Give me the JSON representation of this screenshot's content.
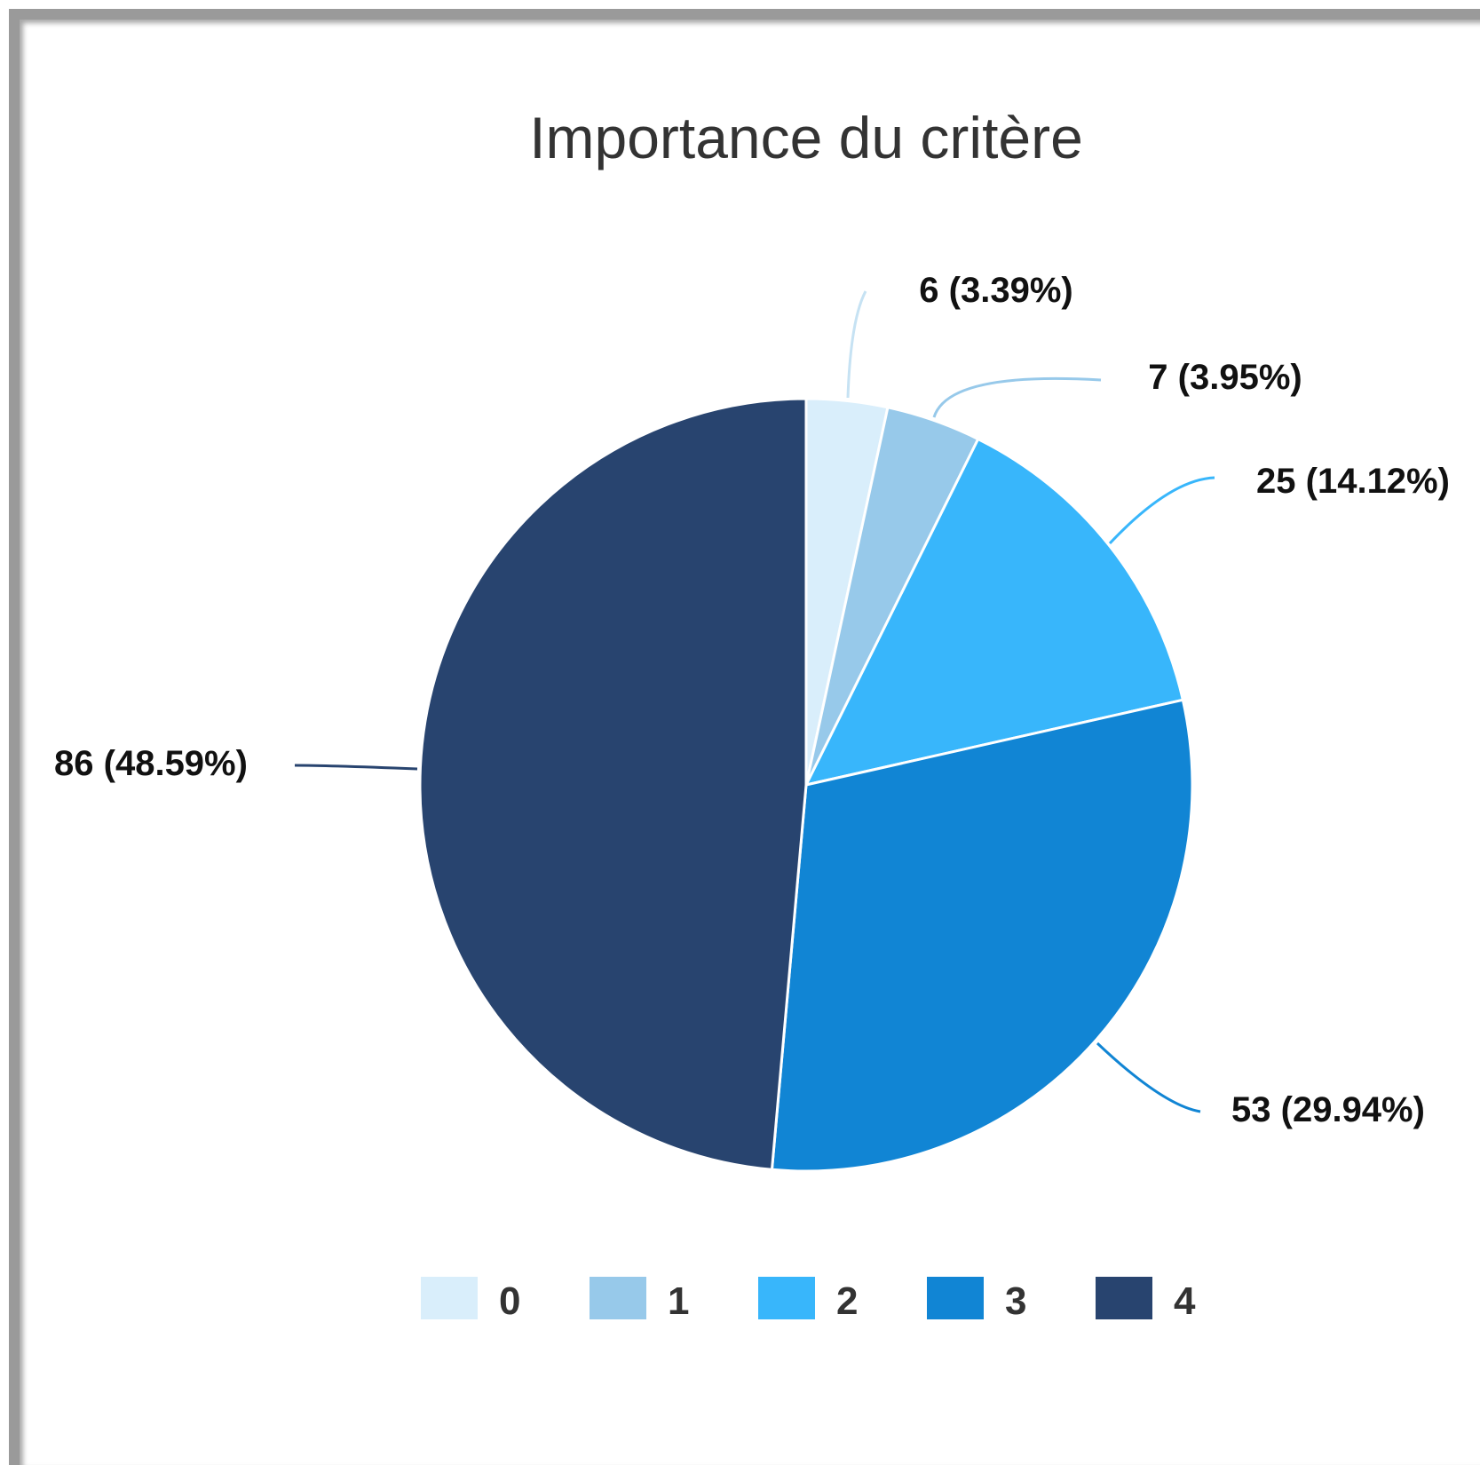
{
  "chart_data": {
    "type": "pie",
    "title": "Importance du critère",
    "categories": [
      "0",
      "1",
      "2",
      "3",
      "4"
    ],
    "values": [
      6,
      7,
      25,
      53,
      86
    ],
    "percentages": [
      3.39,
      3.95,
      14.12,
      29.94,
      48.59
    ],
    "data_labels": [
      "6 (3.39%)",
      "7 (3.95%)",
      "25 (14.12%)",
      "53 (29.94%)",
      "86 (48.59%)"
    ],
    "colors": [
      "#d9eefb",
      "#97c9ea",
      "#38b6fb",
      "#1185d4",
      "#28446f"
    ],
    "legend_position": "bottom",
    "start_angle": "12 o'clock",
    "direction": "clockwise"
  }
}
